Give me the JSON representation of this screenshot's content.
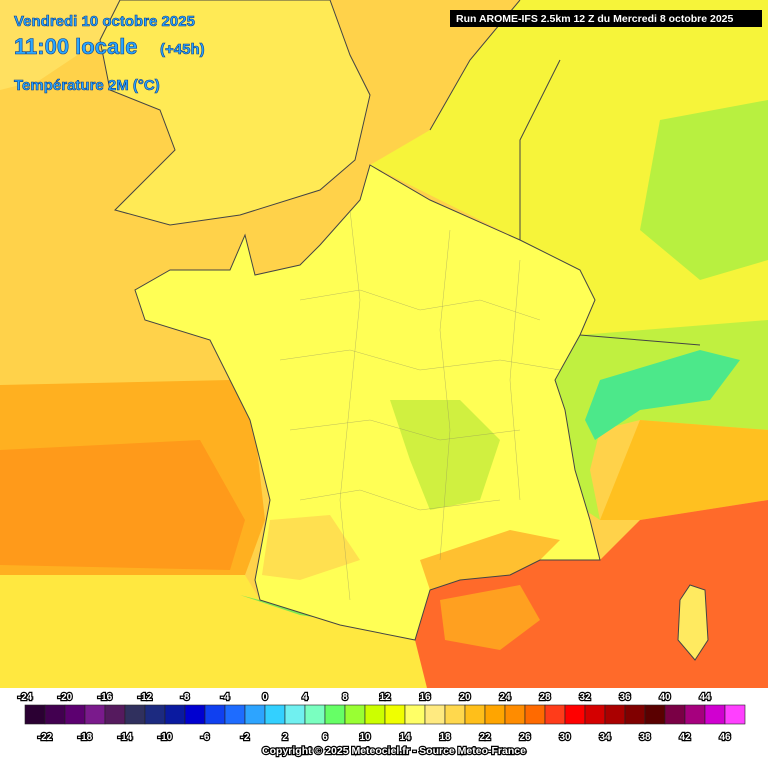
{
  "header": {
    "date": "Vendredi 10 octobre 2025",
    "time": "11:00 locale",
    "lead": "(+45h)",
    "parameter": "Température 2M (°C)",
    "run": "Run AROME-IFS 2.5km 12 Z du Mercredi 8 octobre 2025"
  },
  "legend": {
    "values": [
      -24,
      -22,
      -20,
      -18,
      -16,
      -14,
      -12,
      -10,
      -8,
      -6,
      -4,
      -2,
      0,
      2,
      4,
      6,
      8,
      10,
      12,
      14,
      16,
      18,
      20,
      22,
      24,
      26,
      28,
      30,
      32,
      34,
      36,
      38,
      40,
      42,
      44,
      46
    ],
    "colors": [
      "#2b0033",
      "#420050",
      "#5c0070",
      "#7a1a8c",
      "#551a5e",
      "#30305e",
      "#1c2a80",
      "#0a1aa0",
      "#0000d0",
      "#1040f0",
      "#1e6cff",
      "#2da4ff",
      "#33d0ff",
      "#70f0f0",
      "#7affc0",
      "#66ff66",
      "#99ff33",
      "#ccff00",
      "#f0ff00",
      "#ffff66",
      "#ffea80",
      "#ffd84d",
      "#ffbf1a",
      "#ffa500",
      "#ff8c00",
      "#ff6a00",
      "#ff3c1a",
      "#ff0000",
      "#d40000",
      "#aa0000",
      "#800000",
      "#5a0000",
      "#7a0045",
      "#a6007e",
      "#d000d0",
      "#ff40ff"
    ]
  },
  "footer": {
    "copyright": "Copyright © 2025 Meteociel.fr - Source Meteo-France"
  }
}
